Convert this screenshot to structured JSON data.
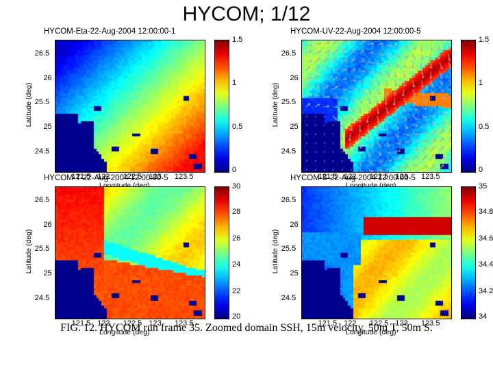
{
  "slide_title": "HYCOM; 1/12",
  "caption": "FIG. 12. HYCOM run frame 35. Zoomed domain SSH, 15m velocity, 50m T, 50m S.",
  "chart_data": [
    {
      "type": "heatmap",
      "title": "HYCOM-Eta-22-Aug-2004 12:00:00-1",
      "xlabel": "Longitude (deg)",
      "ylabel": "Latitude (deg)",
      "xticks": [
        "121.5",
        "122",
        "122.5",
        "123",
        "123.5"
      ],
      "xtick_values": [
        121.5,
        122,
        122.5,
        123,
        123.5
      ],
      "yticks": [
        "26.5",
        "26",
        "25.5",
        "25",
        "24.5"
      ],
      "ytick_values": [
        26.5,
        26,
        25.5,
        25,
        24.5
      ],
      "xlim": [
        121.0,
        123.9
      ],
      "ylim": [
        24.1,
        26.8
      ],
      "colorbar_ticks": [
        "1.5",
        "1",
        "0.5",
        "0"
      ],
      "colorbar_tick_values": [
        1.5,
        1,
        0.5,
        0
      ],
      "clim": [
        0,
        1.5
      ],
      "field": "eta"
    },
    {
      "type": "heatmap",
      "title": "HYCOM-UV-22-Aug-2004 12:00:00-5",
      "xlabel": "Longitude (deg)",
      "ylabel": "Latitude (deg)",
      "xticks": [
        "121.5",
        "122",
        "122.5",
        "123",
        "123.5"
      ],
      "xtick_values": [
        121.5,
        122,
        122.5,
        123,
        123.5
      ],
      "yticks": [
        "26.5",
        "26",
        "25.5",
        "25",
        "24.5"
      ],
      "ytick_values": [
        26.5,
        26,
        25.5,
        25,
        24.5
      ],
      "xlim": [
        121.0,
        123.9
      ],
      "ylim": [
        24.1,
        26.8
      ],
      "colorbar_ticks": [
        "1.5",
        "1",
        "0.5",
        "0"
      ],
      "colorbar_tick_values": [
        1.5,
        1,
        0.5,
        0
      ],
      "clim": [
        0,
        1.5
      ],
      "field": "uv",
      "vectors": true
    },
    {
      "type": "heatmap",
      "title": "HYCOM-T-22-Aug-2004 12:00:00-5",
      "xlabel": "Longitude (deg)",
      "ylabel": "Latitude (deg)",
      "xticks": [
        "121.5",
        "122",
        "122.5",
        "123",
        "123.5"
      ],
      "xtick_values": [
        121.5,
        122,
        122.5,
        123,
        123.5
      ],
      "yticks": [
        "26.5",
        "26",
        "25.5",
        "25",
        "24.5"
      ],
      "ytick_values": [
        26.5,
        26,
        25.5,
        25,
        24.5
      ],
      "xlim": [
        121.0,
        123.9
      ],
      "ylim": [
        24.1,
        26.8
      ],
      "colorbar_ticks": [
        "30",
        "28",
        "26",
        "24",
        "22",
        "20"
      ],
      "colorbar_tick_values": [
        30,
        28,
        26,
        24,
        22,
        20
      ],
      "clim": [
        20,
        30
      ],
      "field": "temp"
    },
    {
      "type": "heatmap",
      "title": "HYCOM-S-22-Aug-2004 12:00:00-5",
      "xlabel": "Longitude (deg)",
      "ylabel": "Latitude (deg)",
      "xticks": [
        "121.5",
        "122",
        "122.5",
        "123",
        "123.5"
      ],
      "xtick_values": [
        121.5,
        122,
        122.5,
        123,
        123.5
      ],
      "yticks": [
        "26.5",
        "26",
        "25.5",
        "25",
        "24.5"
      ],
      "ytick_values": [
        26.5,
        26,
        25.5,
        25,
        24.5
      ],
      "xlim": [
        121.0,
        123.9
      ],
      "ylim": [
        24.1,
        26.8
      ],
      "colorbar_ticks": [
        "35",
        "34.8",
        "34.6",
        "34.4",
        "34.2",
        "34"
      ],
      "colorbar_tick_values": [
        35,
        34.8,
        34.6,
        34.4,
        34.2,
        34
      ],
      "clim": [
        34,
        35
      ],
      "field": "salt"
    }
  ]
}
